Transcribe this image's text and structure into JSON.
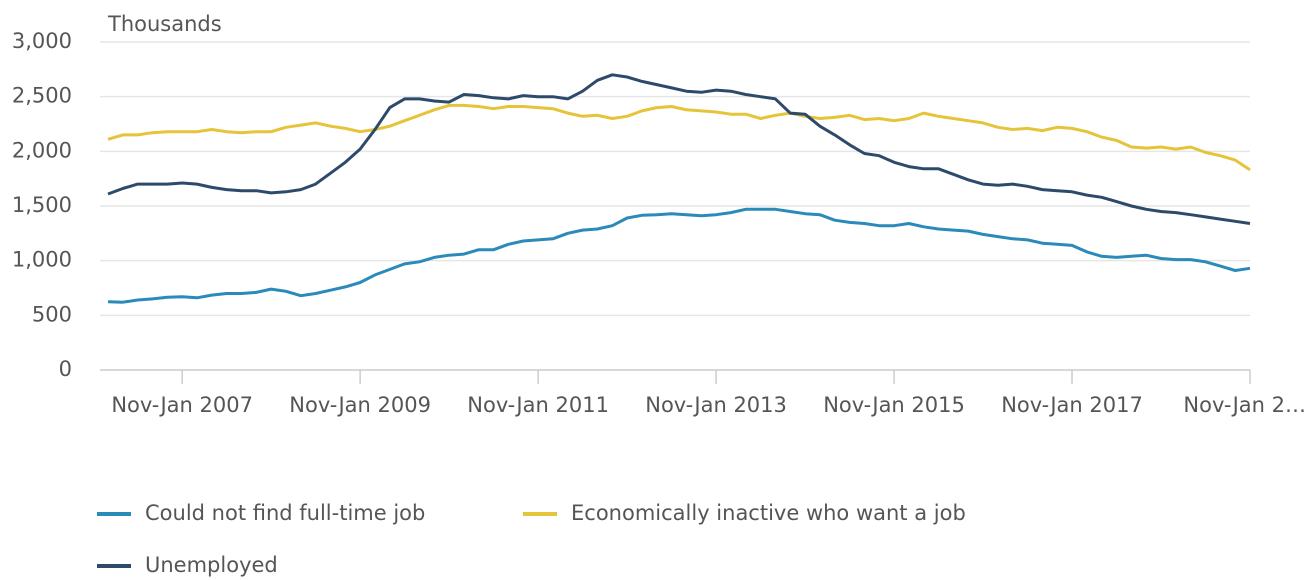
{
  "chart_data": {
    "type": "line",
    "y_label": "Thousands",
    "categories": [
      null,
      null,
      null,
      null,
      null,
      "Nov-Jan 2007",
      null,
      null,
      null,
      null,
      null,
      null,
      null,
      null,
      null,
      null,
      null,
      "Nov-Jan 2009",
      null,
      null,
      null,
      null,
      null,
      null,
      null,
      null,
      null,
      null,
      null,
      "Nov-Jan 2011",
      null,
      null,
      null,
      null,
      null,
      null,
      null,
      null,
      null,
      null,
      null,
      "Nov-Jan 2013",
      null,
      null,
      null,
      null,
      null,
      null,
      null,
      null,
      null,
      null,
      null,
      "Nov-Jan 2015",
      null,
      null,
      null,
      null,
      null,
      null,
      null,
      null,
      null,
      null,
      null,
      "Nov-Jan 2017",
      null,
      null,
      null,
      null,
      null,
      null,
      null,
      null,
      null,
      null,
      null,
      "Nov-Jan 2…"
    ],
    "series": [
      {
        "name": "Could not find full-time job",
        "color": "#2a8ab8",
        "values": [
          625,
          620,
          640,
          650,
          665,
          670,
          660,
          685,
          700,
          700,
          710,
          740,
          720,
          680,
          700,
          730,
          760,
          800,
          870,
          920,
          970,
          990,
          1030,
          1050,
          1060,
          1100,
          1100,
          1150,
          1180,
          1190,
          1200,
          1250,
          1280,
          1290,
          1320,
          1390,
          1415,
          1420,
          1430,
          1420,
          1410,
          1420,
          1440,
          1470,
          1470,
          1470,
          1450,
          1430,
          1420,
          1370,
          1350,
          1340,
          1320,
          1320,
          1340,
          1310,
          1290,
          1280,
          1270,
          1240,
          1220,
          1200,
          1190,
          1160,
          1150,
          1140,
          1080,
          1040,
          1030,
          1040,
          1050,
          1020,
          1010,
          1010,
          990,
          950,
          910,
          930
        ]
      },
      {
        "name": "Economically inactive who want a job",
        "color": "#e5c43a",
        "values": [
          2110,
          2150,
          2150,
          2170,
          2180,
          2180,
          2180,
          2200,
          2180,
          2170,
          2180,
          2180,
          2220,
          2240,
          2260,
          2230,
          2210,
          2180,
          2200,
          2230,
          2280,
          2330,
          2380,
          2420,
          2420,
          2410,
          2390,
          2410,
          2410,
          2400,
          2390,
          2350,
          2320,
          2330,
          2300,
          2320,
          2370,
          2400,
          2410,
          2380,
          2370,
          2360,
          2340,
          2340,
          2300,
          2330,
          2350,
          2320,
          2300,
          2310,
          2330,
          2290,
          2300,
          2280,
          2300,
          2350,
          2320,
          2300,
          2280,
          2260,
          2220,
          2200,
          2210,
          2190,
          2220,
          2210,
          2180,
          2130,
          2100,
          2040,
          2030,
          2040,
          2020,
          2040,
          1990,
          1960,
          1920,
          1830
        ]
      },
      {
        "name": "Unemployed",
        "color": "#2e4a6b",
        "values": [
          1610,
          1660,
          1700,
          1700,
          1700,
          1710,
          1700,
          1670,
          1650,
          1640,
          1640,
          1620,
          1630,
          1650,
          1700,
          1800,
          1900,
          2020,
          2200,
          2400,
          2480,
          2480,
          2460,
          2450,
          2520,
          2510,
          2490,
          2480,
          2510,
          2500,
          2500,
          2480,
          2550,
          2650,
          2700,
          2680,
          2640,
          2610,
          2580,
          2550,
          2540,
          2560,
          2550,
          2520,
          2500,
          2480,
          2350,
          2340,
          2230,
          2150,
          2060,
          1980,
          1960,
          1900,
          1860,
          1840,
          1840,
          1790,
          1740,
          1700,
          1690,
          1700,
          1680,
          1650,
          1640,
          1630,
          1600,
          1580,
          1540,
          1500,
          1470,
          1450,
          1440,
          1420,
          1400,
          1380,
          1360,
          1340
        ]
      }
    ],
    "ylim": [
      0,
      3000
    ],
    "yticks": [
      0,
      500,
      {
        "value": 1000,
        "label": "1,000"
      },
      {
        "value": 1500,
        "label": "1,500"
      },
      {
        "value": 2000,
        "label": "2,000"
      },
      {
        "value": 2500,
        "label": "2,500"
      },
      {
        "value": 3000,
        "label": "3,000"
      }
    ],
    "grid": true
  }
}
